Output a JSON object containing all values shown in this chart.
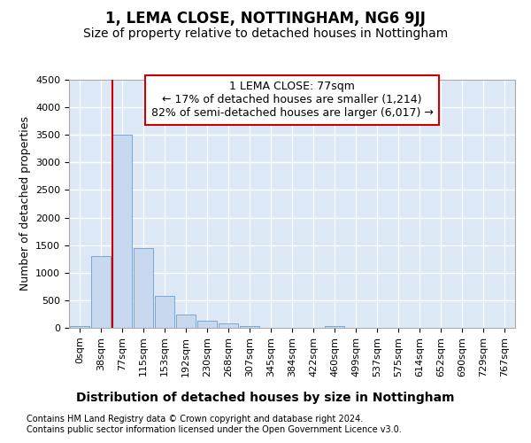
{
  "title": "1, LEMA CLOSE, NOTTINGHAM, NG6 9JJ",
  "subtitle": "Size of property relative to detached houses in Nottingham",
  "xlabel": "Distribution of detached houses by size in Nottingham",
  "ylabel": "Number of detached properties",
  "footnote1": "Contains HM Land Registry data © Crown copyright and database right 2024.",
  "footnote2": "Contains public sector information licensed under the Open Government Licence v3.0.",
  "property_label": "1 LEMA CLOSE: 77sqm",
  "annotation_line1": "← 17% of detached houses are smaller (1,214)",
  "annotation_line2": "82% of semi-detached houses are larger (6,017) →",
  "bin_labels": [
    "0sqm",
    "38sqm",
    "77sqm",
    "115sqm",
    "153sqm",
    "192sqm",
    "230sqm",
    "268sqm",
    "307sqm",
    "345sqm",
    "384sqm",
    "422sqm",
    "460sqm",
    "499sqm",
    "537sqm",
    "575sqm",
    "614sqm",
    "652sqm",
    "690sqm",
    "729sqm",
    "767sqm"
  ],
  "bar_values": [
    30,
    1300,
    3500,
    1450,
    580,
    240,
    130,
    80,
    40,
    0,
    0,
    0,
    30,
    0,
    0,
    0,
    0,
    0,
    0,
    0,
    0
  ],
  "bar_color": "#c8d8ee",
  "bar_edge_color": "#7aa8d0",
  "vline_color": "#cc0000",
  "vline_x_index": 2,
  "ylim": [
    0,
    4500
  ],
  "yticks": [
    0,
    500,
    1000,
    1500,
    2000,
    2500,
    3000,
    3500,
    4000,
    4500
  ],
  "background_color": "#dce8f5",
  "grid_color": "#ffffff",
  "fig_background": "#ffffff",
  "title_fontsize": 12,
  "subtitle_fontsize": 10,
  "ylabel_fontsize": 9,
  "xlabel_fontsize": 10,
  "tick_fontsize": 8,
  "annotation_fontsize": 9,
  "footnote_fontsize": 7,
  "annotation_box_edgecolor": "#cc0000",
  "annotation_box_facecolor": "#ffffff"
}
